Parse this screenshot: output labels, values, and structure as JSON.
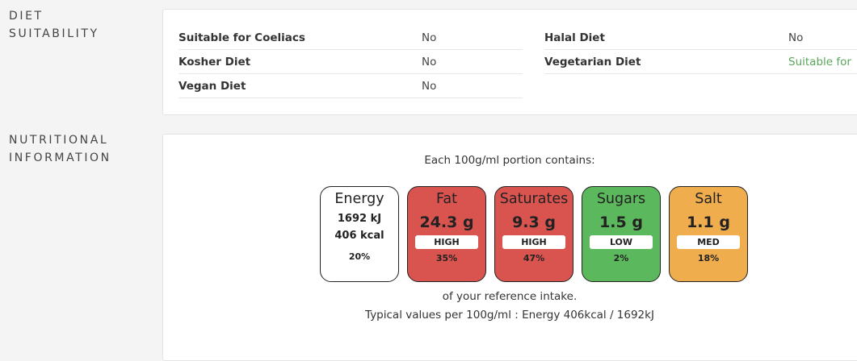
{
  "diet": {
    "section_title_line1": "DIET",
    "section_title_line2": "SUITABILITY",
    "left": [
      {
        "label": "Suitable for Coeliacs",
        "value": "No"
      },
      {
        "label": "Kosher Diet",
        "value": "No"
      },
      {
        "label": "Vegan Diet",
        "value": "No"
      }
    ],
    "right": [
      {
        "label": "Halal Diet",
        "value": "No"
      },
      {
        "label": "Vegetarian Diet",
        "value": "Suitable for"
      }
    ]
  },
  "nutrition": {
    "section_title_line1": "NUTRITIONAL",
    "section_title_line2": "INFORMATION",
    "portion_text": "Each 100g/ml portion contains:",
    "energy": {
      "name": "Energy",
      "kj": "1692 kJ",
      "kcal": "406 kcal",
      "percent": "20%"
    },
    "items": [
      {
        "name": "Fat",
        "amount": "24.3 g",
        "level": "HIGH",
        "percent": "35%",
        "color": "#d9534f"
      },
      {
        "name": "Saturates",
        "amount": "9.3 g",
        "level": "HIGH",
        "percent": "47%",
        "color": "#d9534f"
      },
      {
        "name": "Sugars",
        "amount": "1.5 g",
        "level": "LOW",
        "percent": "2%",
        "color": "#5cb85c"
      },
      {
        "name": "Salt",
        "amount": "1.1 g",
        "level": "MED",
        "percent": "18%",
        "color": "#f0ad4e"
      }
    ],
    "reference_text": "of your reference intake.",
    "typical_text": "Typical values per 100g/ml : Energy 406kcal / 1692kJ"
  }
}
